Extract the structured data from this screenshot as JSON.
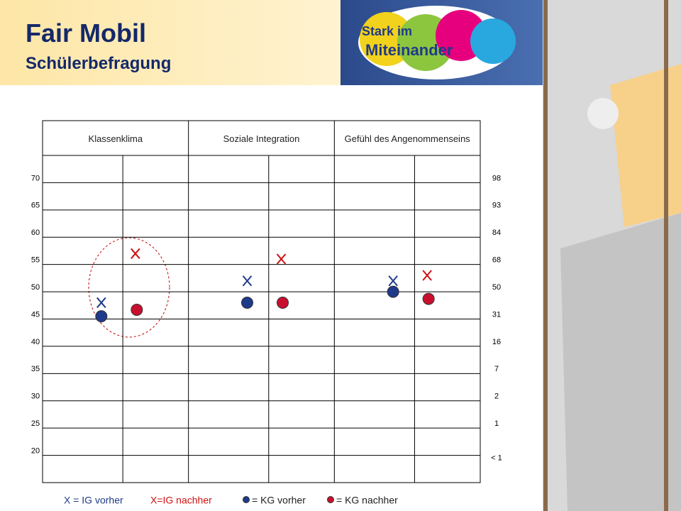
{
  "header": {
    "title": "Fair Mobil",
    "subtitle": "Schülerbefragung",
    "logo": [
      "Stark im",
      "Miteinander"
    ]
  },
  "chart_data": {
    "type": "scatter",
    "categories": [
      "Klassenklima",
      "Soziale Integration",
      "Gefühl des Angenommenseins"
    ],
    "series": [
      {
        "name": "X = IG vorher",
        "color": "#1f3a8a",
        "marker": "x",
        "values": [
          48,
          52,
          52
        ]
      },
      {
        "name": "X=IG nachher",
        "color": "#d01010",
        "marker": "x",
        "values": [
          57,
          56,
          53
        ]
      },
      {
        "name": "= KG vorher",
        "color": "#1f3a8a",
        "marker": "dot",
        "values": [
          45.5,
          48,
          50
        ]
      },
      {
        "name": "= KG nachher",
        "color": "#c8102e",
        "marker": "dot",
        "values": [
          46.7,
          48,
          48.7
        ]
      }
    ],
    "ylim": [
      15,
      75
    ],
    "yticks": [
      70,
      65,
      60,
      55,
      50,
      45,
      40,
      35,
      30,
      25,
      20
    ],
    "y2_labels": [
      98,
      93,
      84,
      68,
      50,
      31,
      16,
      7,
      2,
      1,
      "< 1"
    ],
    "grid": true
  }
}
